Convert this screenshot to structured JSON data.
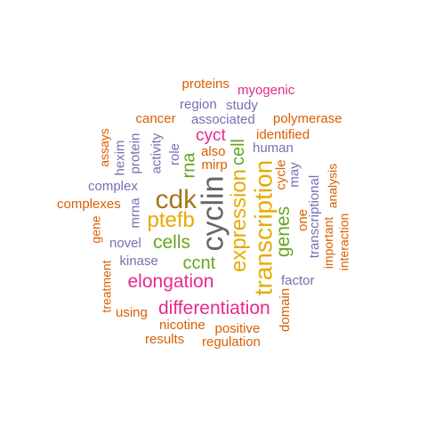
{
  "palette": {
    "orange": "#D95F02",
    "purple": "#7570B3",
    "magenta": "#E7298A",
    "green": "#66A61E",
    "gold": "#E6AB02",
    "brown": "#A6761D",
    "gray": "#666666"
  },
  "words": [
    {
      "text": "cyclin",
      "color": "gray",
      "size": 34,
      "rotated": true
    },
    {
      "text": "cdk",
      "color": "brown",
      "size": 30,
      "rotated": false
    },
    {
      "text": "transcription",
      "color": "gold",
      "size": 28,
      "rotated": true
    },
    {
      "text": "expression",
      "color": "gold",
      "size": 24,
      "rotated": true
    },
    {
      "text": "ptefb",
      "color": "gold",
      "size": 24,
      "rotated": false
    },
    {
      "text": "differentiation",
      "color": "magenta",
      "size": 21,
      "rotated": false
    },
    {
      "text": "elongation",
      "color": "magenta",
      "size": 21,
      "rotated": false
    },
    {
      "text": "genes",
      "color": "green",
      "size": 21,
      "rotated": true
    },
    {
      "text": "cells",
      "color": "green",
      "size": 21,
      "rotated": false
    },
    {
      "text": "ccnt",
      "color": "green",
      "size": 20,
      "rotated": false
    },
    {
      "text": "rna",
      "color": "green",
      "size": 20,
      "rotated": true
    },
    {
      "text": "cell",
      "color": "green",
      "size": 20,
      "rotated": true
    },
    {
      "text": "cyct",
      "color": "magenta",
      "size": 19,
      "rotated": false
    },
    {
      "text": "human",
      "color": "purple",
      "size": 15,
      "rotated": false
    },
    {
      "text": "identified",
      "color": "orange",
      "size": 15,
      "rotated": false
    },
    {
      "text": "polymerase",
      "color": "orange",
      "size": 15,
      "rotated": false
    },
    {
      "text": "associated",
      "color": "purple",
      "size": 15,
      "rotated": false
    },
    {
      "text": "cancer",
      "color": "orange",
      "size": 15,
      "rotated": false
    },
    {
      "text": "region",
      "color": "purple",
      "size": 15,
      "rotated": false
    },
    {
      "text": "study",
      "color": "purple",
      "size": 15,
      "rotated": false
    },
    {
      "text": "myogenic",
      "color": "magenta",
      "size": 15,
      "rotated": false
    },
    {
      "text": "proteins",
      "color": "orange",
      "size": 15,
      "rotated": false
    },
    {
      "text": "also",
      "color": "orange",
      "size": 15,
      "rotated": false
    },
    {
      "text": "mirp",
      "color": "orange",
      "size": 15,
      "rotated": false
    },
    {
      "text": "role",
      "color": "purple",
      "size": 15,
      "rotated": true
    },
    {
      "text": "activity",
      "color": "purple",
      "size": 15,
      "rotated": true
    },
    {
      "text": "protein",
      "color": "purple",
      "size": 15,
      "rotated": true
    },
    {
      "text": "hexim",
      "color": "purple",
      "size": 15,
      "rotated": true
    },
    {
      "text": "assays",
      "color": "orange",
      "size": 14,
      "rotated": true
    },
    {
      "text": "complex",
      "color": "purple",
      "size": 15,
      "rotated": false
    },
    {
      "text": "complexes",
      "color": "orange",
      "size": 15,
      "rotated": false
    },
    {
      "text": "mrna",
      "color": "purple",
      "size": 15,
      "rotated": true
    },
    {
      "text": "gene",
      "color": "orange",
      "size": 14,
      "rotated": true
    },
    {
      "text": "novel",
      "color": "purple",
      "size": 15,
      "rotated": false
    },
    {
      "text": "kinase",
      "color": "purple",
      "size": 15,
      "rotated": false
    },
    {
      "text": "treatment",
      "color": "orange",
      "size": 14,
      "rotated": true
    },
    {
      "text": "using",
      "color": "orange",
      "size": 15,
      "rotated": false
    },
    {
      "text": "nicotine",
      "color": "orange",
      "size": 15,
      "rotated": false
    },
    {
      "text": "positive",
      "color": "orange",
      "size": 15,
      "rotated": false
    },
    {
      "text": "results",
      "color": "orange",
      "size": 15,
      "rotated": false
    },
    {
      "text": "regulation",
      "color": "orange",
      "size": 15,
      "rotated": false
    },
    {
      "text": "domain",
      "color": "orange",
      "size": 15,
      "rotated": true
    },
    {
      "text": "factor",
      "color": "purple",
      "size": 15,
      "rotated": false
    },
    {
      "text": "cycle",
      "color": "orange",
      "size": 15,
      "rotated": true
    },
    {
      "text": "may",
      "color": "purple",
      "size": 15,
      "rotated": true
    },
    {
      "text": "one",
      "color": "orange",
      "size": 15,
      "rotated": true
    },
    {
      "text": "transcriptional",
      "color": "purple",
      "size": 15,
      "rotated": true
    },
    {
      "text": "important",
      "color": "orange",
      "size": 14,
      "rotated": true
    },
    {
      "text": "analysis",
      "color": "orange",
      "size": 14,
      "rotated": true
    },
    {
      "text": "interaction",
      "color": "orange",
      "size": 14,
      "rotated": true
    }
  ]
}
